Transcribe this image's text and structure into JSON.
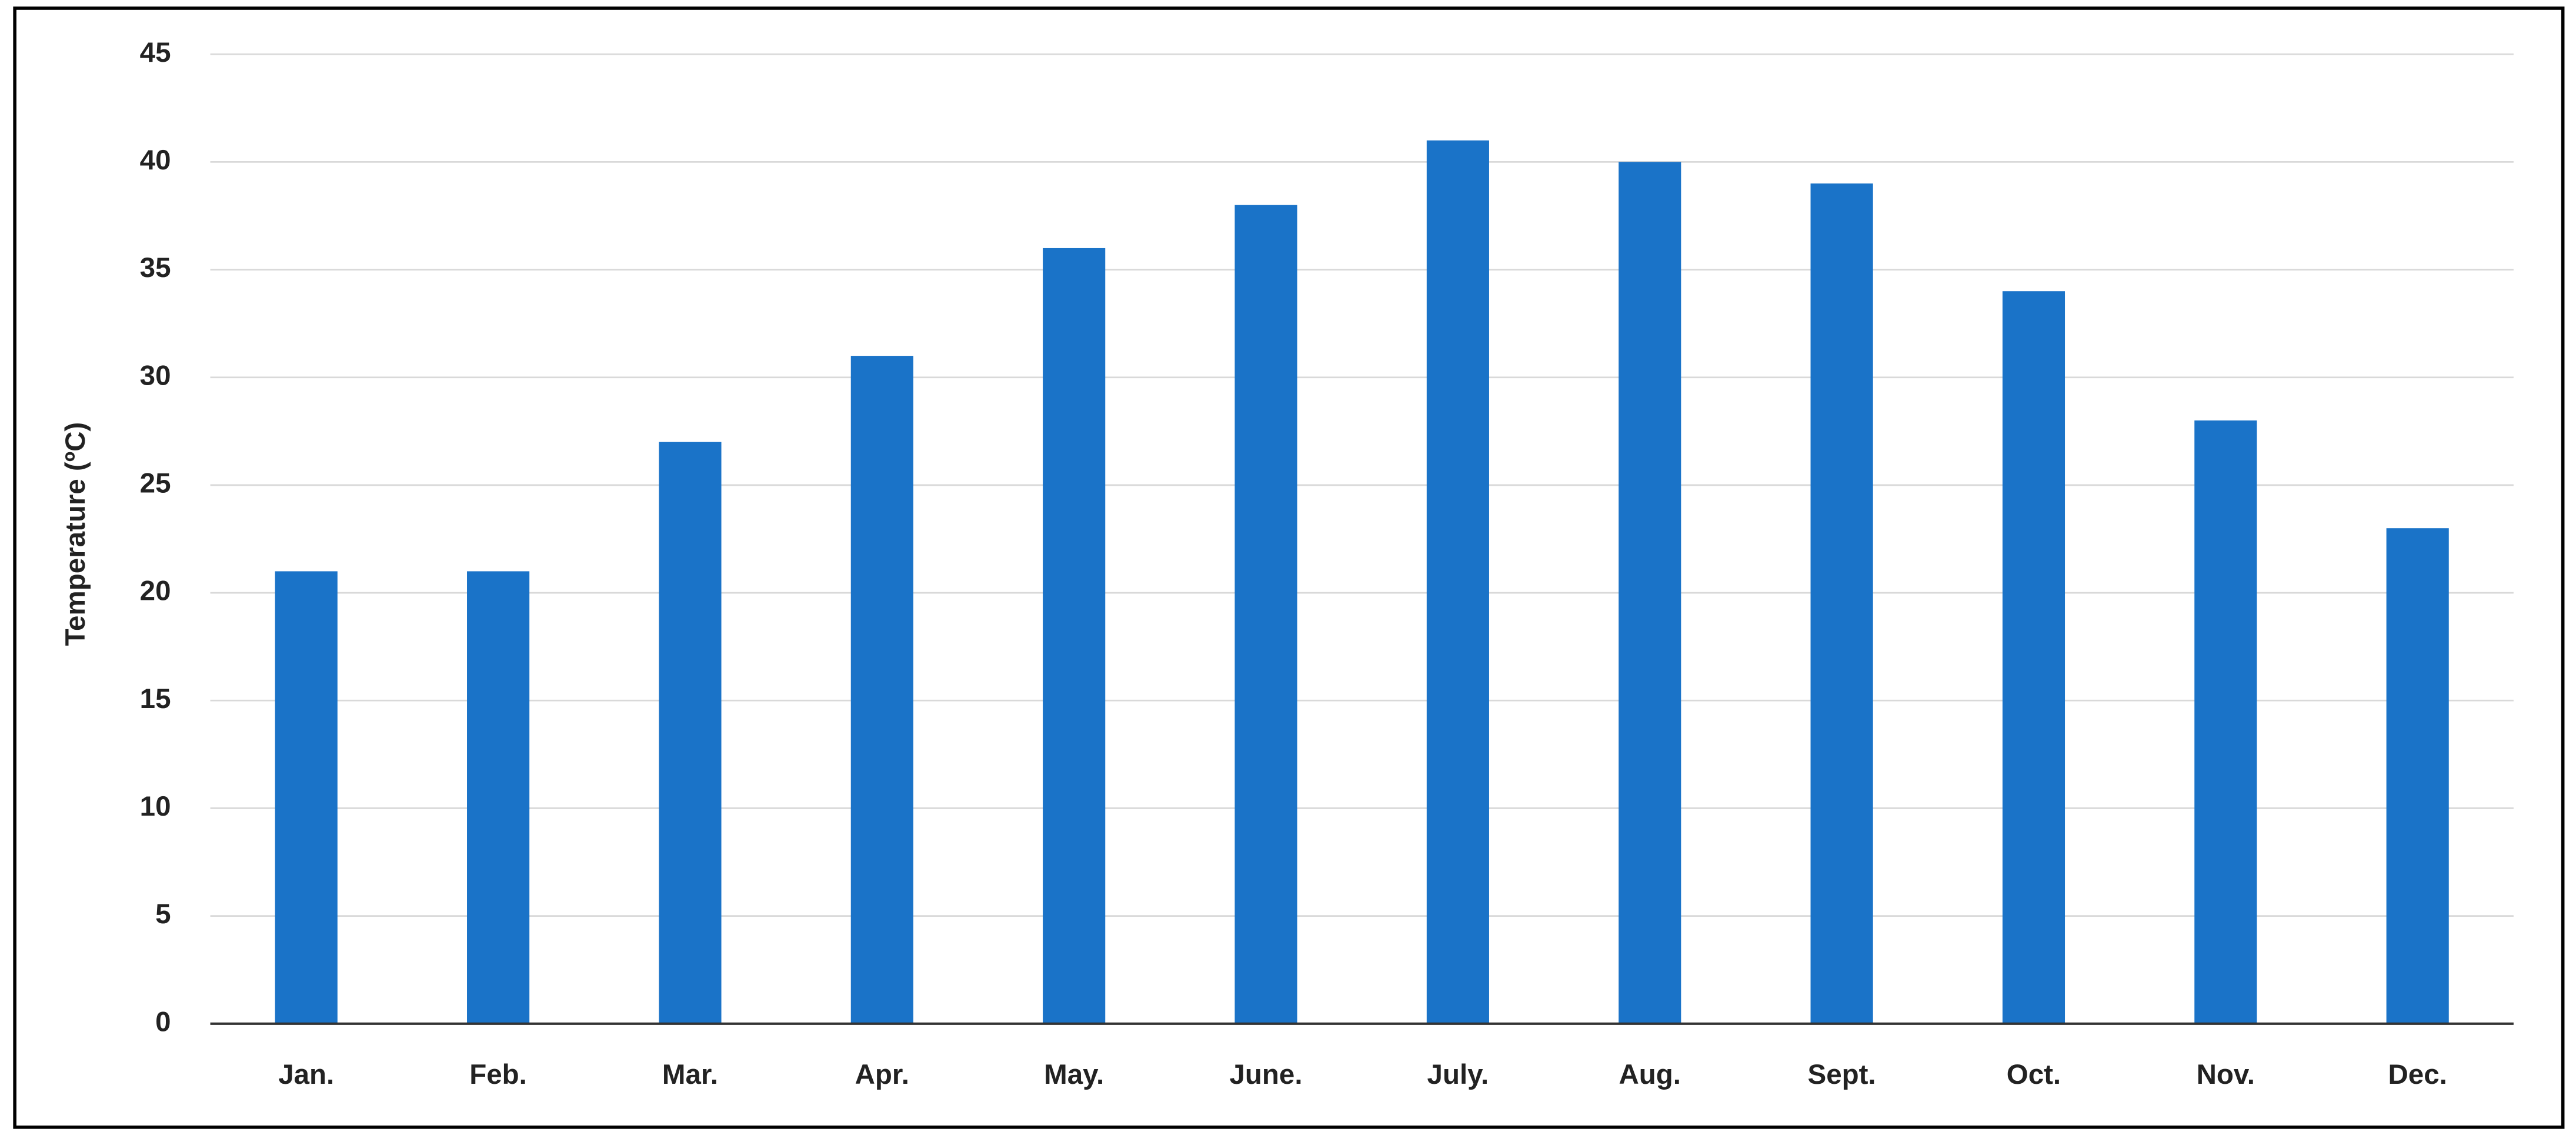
{
  "chart_data": {
    "type": "bar",
    "y_label": "Temperature  (ºC)",
    "categories": [
      "Jan.",
      "Feb.",
      "Mar.",
      "Apr.",
      "May.",
      "June.",
      "July.",
      "Aug.",
      "Sept.",
      "Oct.",
      "Nov.",
      "Dec."
    ],
    "values": [
      21,
      21,
      27,
      31,
      36,
      38,
      41,
      40,
      39,
      34,
      28,
      23
    ],
    "color": "#1a73c8",
    "ylim": [
      0,
      45
    ],
    "yticks": [
      0,
      5,
      10,
      15,
      20,
      25,
      30,
      35,
      40,
      45
    ],
    "grid": true
  }
}
